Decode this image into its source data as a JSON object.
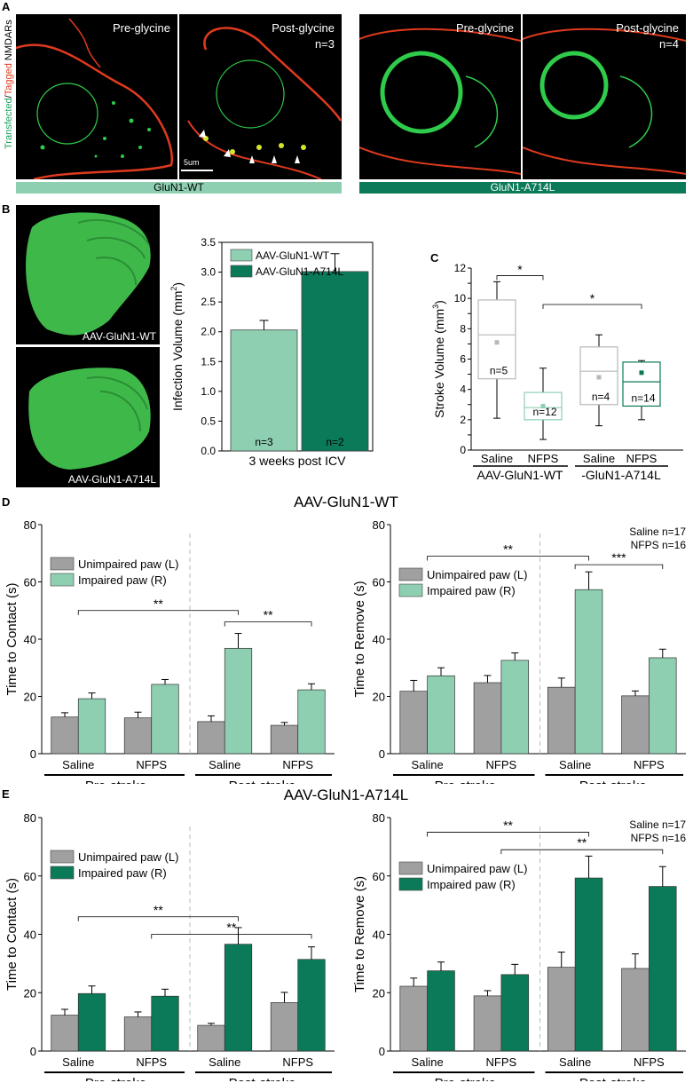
{
  "panel_letters": {
    "a": "A",
    "b": "B",
    "c": "C",
    "d": "D",
    "e": "E"
  },
  "panel_a": {
    "ylabel_transfected": "Transfected",
    "ylabel_sep": "/",
    "ylabel_tagged": "Tagged",
    "ylabel_rest": " NMDARs",
    "images": [
      {
        "label": "Pre-glycine",
        "n": ""
      },
      {
        "label": "Post-glycine",
        "n": "n=3"
      },
      {
        "label": "Pre-glycine",
        "n": ""
      },
      {
        "label": "Post-glycine",
        "n": "n=4"
      }
    ],
    "scale_bar": "5um",
    "genotypes": [
      "GluN1-WT",
      "GluN1-A714L"
    ],
    "colors": {
      "wt_bar": "#8ecfb2",
      "a714l_bar": "#0b7a59",
      "green": "#2ecc4a",
      "red": "#e03a1e"
    }
  },
  "panel_b": {
    "tissue_labels": [
      "AAV-GluN1-WT",
      "AAV-GluN1-A714L"
    ],
    "chart_data": {
      "type": "bar",
      "categories": [
        "AAV-GluN1-WT",
        "AAV-GluN1-A714L"
      ],
      "values": [
        2.03,
        3.01
      ],
      "errors": [
        0.16,
        0.3
      ],
      "n_labels": [
        "n=3",
        "n=2"
      ],
      "xlabel": "3 weeks post ICV",
      "ylabel": "Infection Volume (mm",
      "ylabel_sup": "2",
      "ylabel_close": ")",
      "ylim": [
        0,
        3.5
      ],
      "yticks": [
        "0.0",
        "0.5",
        "1.0",
        "1.5",
        "2.0",
        "2.5",
        "3.0",
        "3.5"
      ],
      "legend": [
        "AAV-GluN1-WT",
        "AAV-GluN1-A714L"
      ],
      "colors": [
        "#8ecfb2",
        "#0b7a59"
      ]
    }
  },
  "panel_c": {
    "chart_data": {
      "type": "box",
      "groups": [
        {
          "label": "Saline",
          "q1": 4.7,
          "median": 7.6,
          "q3": 9.9,
          "min": 2.1,
          "max": 11.1,
          "mean": 7.1,
          "n": "n=5",
          "color": "#b8b8b8"
        },
        {
          "label": "NFPS",
          "q1": 2.0,
          "median": 2.8,
          "q3": 3.8,
          "min": 0.7,
          "max": 5.4,
          "mean": 2.9,
          "n": "n=12",
          "color": "#8ecfb2"
        },
        {
          "label": "Saline",
          "q1": 3.0,
          "median": 5.2,
          "q3": 6.8,
          "min": 1.6,
          "max": 7.6,
          "mean": 4.8,
          "n": "n=4",
          "color": "#b8b8b8"
        },
        {
          "label": "NFPS",
          "q1": 2.9,
          "median": 4.5,
          "q3": 5.8,
          "min": 2.0,
          "max": 5.9,
          "mean": 5.1,
          "n": "n=14",
          "color": "#0b7a59"
        }
      ],
      "group_labels": [
        "AAV-GluN1-WT",
        "-GluN1-A714L"
      ],
      "ylabel": "Stroke Volume (mm",
      "ylabel_sup": "3",
      "ylabel_close": ")",
      "ylim": [
        0,
        12
      ],
      "yticks": [
        "0",
        "1",
        "2",
        "3",
        "4",
        "5",
        "6",
        "7",
        "8",
        "9",
        "10",
        "11",
        "12"
      ],
      "sig": [
        "*",
        "*"
      ]
    }
  },
  "titles": {
    "d": "AAV-GluN1-WT",
    "e": "AAV-GluN1-A714L"
  },
  "behavior_charts": [
    {
      "id": "d-left",
      "chart_data": {
        "type": "bar",
        "categories": [
          "Saline",
          "NFPS",
          "Saline",
          "NFPS"
        ],
        "groups": [
          "Pre-stroke",
          "Post-stroke"
        ],
        "series": [
          {
            "name": "Unimpaired paw (L)",
            "values": [
              12.8,
              12.5,
              11.2,
              9.9
            ],
            "errors": [
              1.5,
              2.0,
              2.0,
              1.0
            ],
            "color": "#a0a0a0"
          },
          {
            "name": "Impaired paw (R)",
            "values": [
              19.2,
              24.2,
              36.8,
              22.3
            ],
            "errors": [
              2.0,
              1.7,
              5.2,
              2.1
            ],
            "color": "#8ecfb2"
          }
        ],
        "ylabel": "Time to Contact (s)",
        "ylim": [
          0,
          80
        ],
        "yticks": [
          "0",
          "20",
          "40",
          "60",
          "80"
        ],
        "sig": [
          "**",
          "**"
        ],
        "note": [
          "",
          ""
        ]
      }
    },
    {
      "id": "d-right",
      "chart_data": {
        "type": "bar",
        "categories": [
          "Saline",
          "NFPS",
          "Saline",
          "NFPS"
        ],
        "groups": [
          "Pre-stroke",
          "Post-stroke"
        ],
        "series": [
          {
            "name": "Unimpaired paw (L)",
            "values": [
              21.8,
              24.8,
              23.2,
              20.2
            ],
            "errors": [
              3.8,
              2.5,
              3.2,
              1.7
            ],
            "color": "#a0a0a0"
          },
          {
            "name": "Impaired paw (R)",
            "values": [
              27.2,
              32.6,
              57.3,
              33.5
            ],
            "errors": [
              2.8,
              2.6,
              6.2,
              3.0
            ],
            "color": "#8ecfb2"
          }
        ],
        "ylabel": "Time to Remove (s)",
        "ylim": [
          0,
          80
        ],
        "yticks": [
          "0",
          "20",
          "40",
          "60",
          "80"
        ],
        "sig": [
          "**",
          "***"
        ],
        "note": [
          "Saline n=17",
          "NFPS n=16"
        ]
      }
    },
    {
      "id": "e-left",
      "chart_data": {
        "type": "bar",
        "categories": [
          "Saline",
          "NFPS",
          "Saline",
          "NFPS"
        ],
        "groups": [
          "Pre-stroke",
          "Post-stroke"
        ],
        "series": [
          {
            "name": "Unimpaired paw (L)",
            "values": [
              12.3,
              11.7,
              8.8,
              16.6
            ],
            "errors": [
              2.0,
              1.7,
              0.7,
              3.5
            ],
            "color": "#a0a0a0"
          },
          {
            "name": "Impaired paw (R)",
            "values": [
              19.7,
              18.8,
              36.6,
              31.4
            ],
            "errors": [
              2.6,
              2.4,
              5.7,
              4.3
            ],
            "color": "#0b7a59"
          }
        ],
        "ylabel": "Time to Contact (s)",
        "ylim": [
          0,
          80
        ],
        "yticks": [
          "0",
          "20",
          "40",
          "60",
          "80"
        ],
        "sig": [
          "**",
          "**"
        ],
        "note": [
          "",
          ""
        ]
      }
    },
    {
      "id": "e-right",
      "chart_data": {
        "type": "bar",
        "categories": [
          "Saline",
          "NFPS",
          "Saline",
          "NFPS"
        ],
        "groups": [
          "Pre-stroke",
          "Post-stroke"
        ],
        "series": [
          {
            "name": "Unimpaired paw (L)",
            "values": [
              22.2,
              18.9,
              28.7,
              28.3
            ],
            "errors": [
              2.8,
              1.8,
              5.2,
              5.0
            ],
            "color": "#a0a0a0"
          },
          {
            "name": "Impaired paw (R)",
            "values": [
              27.5,
              26.2,
              59.3,
              56.4
            ],
            "errors": [
              3.0,
              3.5,
              7.5,
              6.8
            ],
            "color": "#0b7a59"
          }
        ],
        "ylabel": "Time to Remove (s)",
        "ylim": [
          0,
          80
        ],
        "yticks": [
          "0",
          "20",
          "40",
          "60",
          "80"
        ],
        "sig": [
          "**",
          "**"
        ],
        "note": [
          "Saline n=17",
          "NFPS n=16"
        ]
      }
    }
  ]
}
